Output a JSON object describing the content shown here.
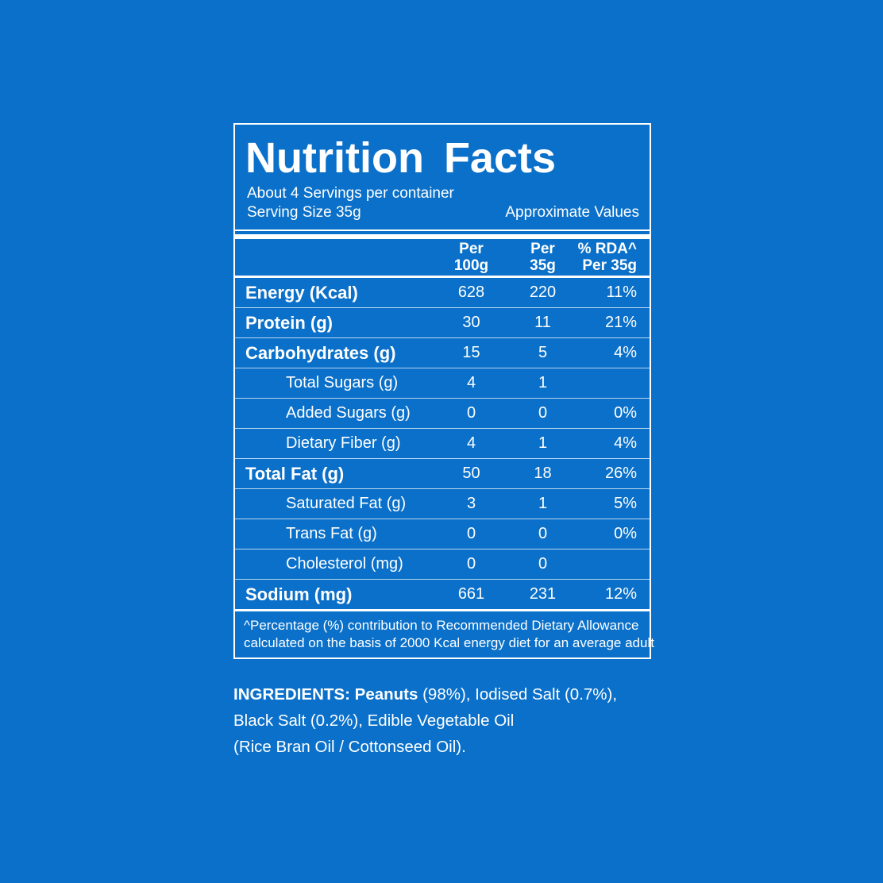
{
  "colors": {
    "background": "#0a70c9",
    "panel_border": "#ffffff",
    "text": "#ffffff",
    "row_divider": "rgba(255,255,255,0.72)"
  },
  "panel": {
    "title": "Nutrition Facts",
    "servings_per_container": "About 4 Servings per container",
    "serving_size": "Serving Size 35g",
    "approximate_values": "Approximate Values",
    "columns": {
      "per100_line1": "Per",
      "per100_line2": "100g",
      "per35_line1": "Per",
      "per35_line2": "35g",
      "rda_line1": "% RDA^",
      "rda_line2": "Per 35g"
    },
    "rows": [
      {
        "label": "Energy (Kcal)",
        "per_100g": "628",
        "per_35g": "220",
        "rda": "11%"
      },
      {
        "label": "Protein (g)",
        "per_100g": "30",
        "per_35g": "11",
        "rda": "21%"
      },
      {
        "label": "Carbohydrates (g)",
        "per_100g": "15",
        "per_35g": "5",
        "rda": "4%"
      },
      {
        "label": "Total Sugars (g)",
        "per_100g": "4",
        "per_35g": "1",
        "rda": ""
      },
      {
        "label": "Added Sugars (g)",
        "per_100g": "0",
        "per_35g": "0",
        "rda": "0%"
      },
      {
        "label": "Dietary Fiber (g)",
        "per_100g": "4",
        "per_35g": "1",
        "rda": "4%"
      },
      {
        "label": "Total Fat (g)",
        "per_100g": "50",
        "per_35g": "18",
        "rda": "26%"
      },
      {
        "label": "Saturated Fat (g)",
        "per_100g": "3",
        "per_35g": "1",
        "rda": "5%"
      },
      {
        "label": "Trans Fat (g)",
        "per_100g": "0",
        "per_35g": "0",
        "rda": "0%"
      },
      {
        "label": "Cholesterol (mg)",
        "per_100g": "0",
        "per_35g": "0",
        "rda": ""
      },
      {
        "label": "Sodium (mg)",
        "per_100g": "661",
        "per_35g": "231",
        "rda": "12%"
      }
    ],
    "footnote_line1": "^Percentage (%) contribution to Recommended Dietary Allowance",
    "footnote_line2": "calculated on the basis of 2000 Kcal energy diet for an average adult"
  },
  "ingredients": {
    "heading": "INGREDIENTS:",
    "first_item_bold": "Peanuts",
    "line1_rest": " (98%), Iodised Salt (0.7%),",
    "line2": "Black Salt (0.2%), Edible Vegetable Oil",
    "line3": "(Rice Bran Oil / Cottonseed Oil)."
  }
}
